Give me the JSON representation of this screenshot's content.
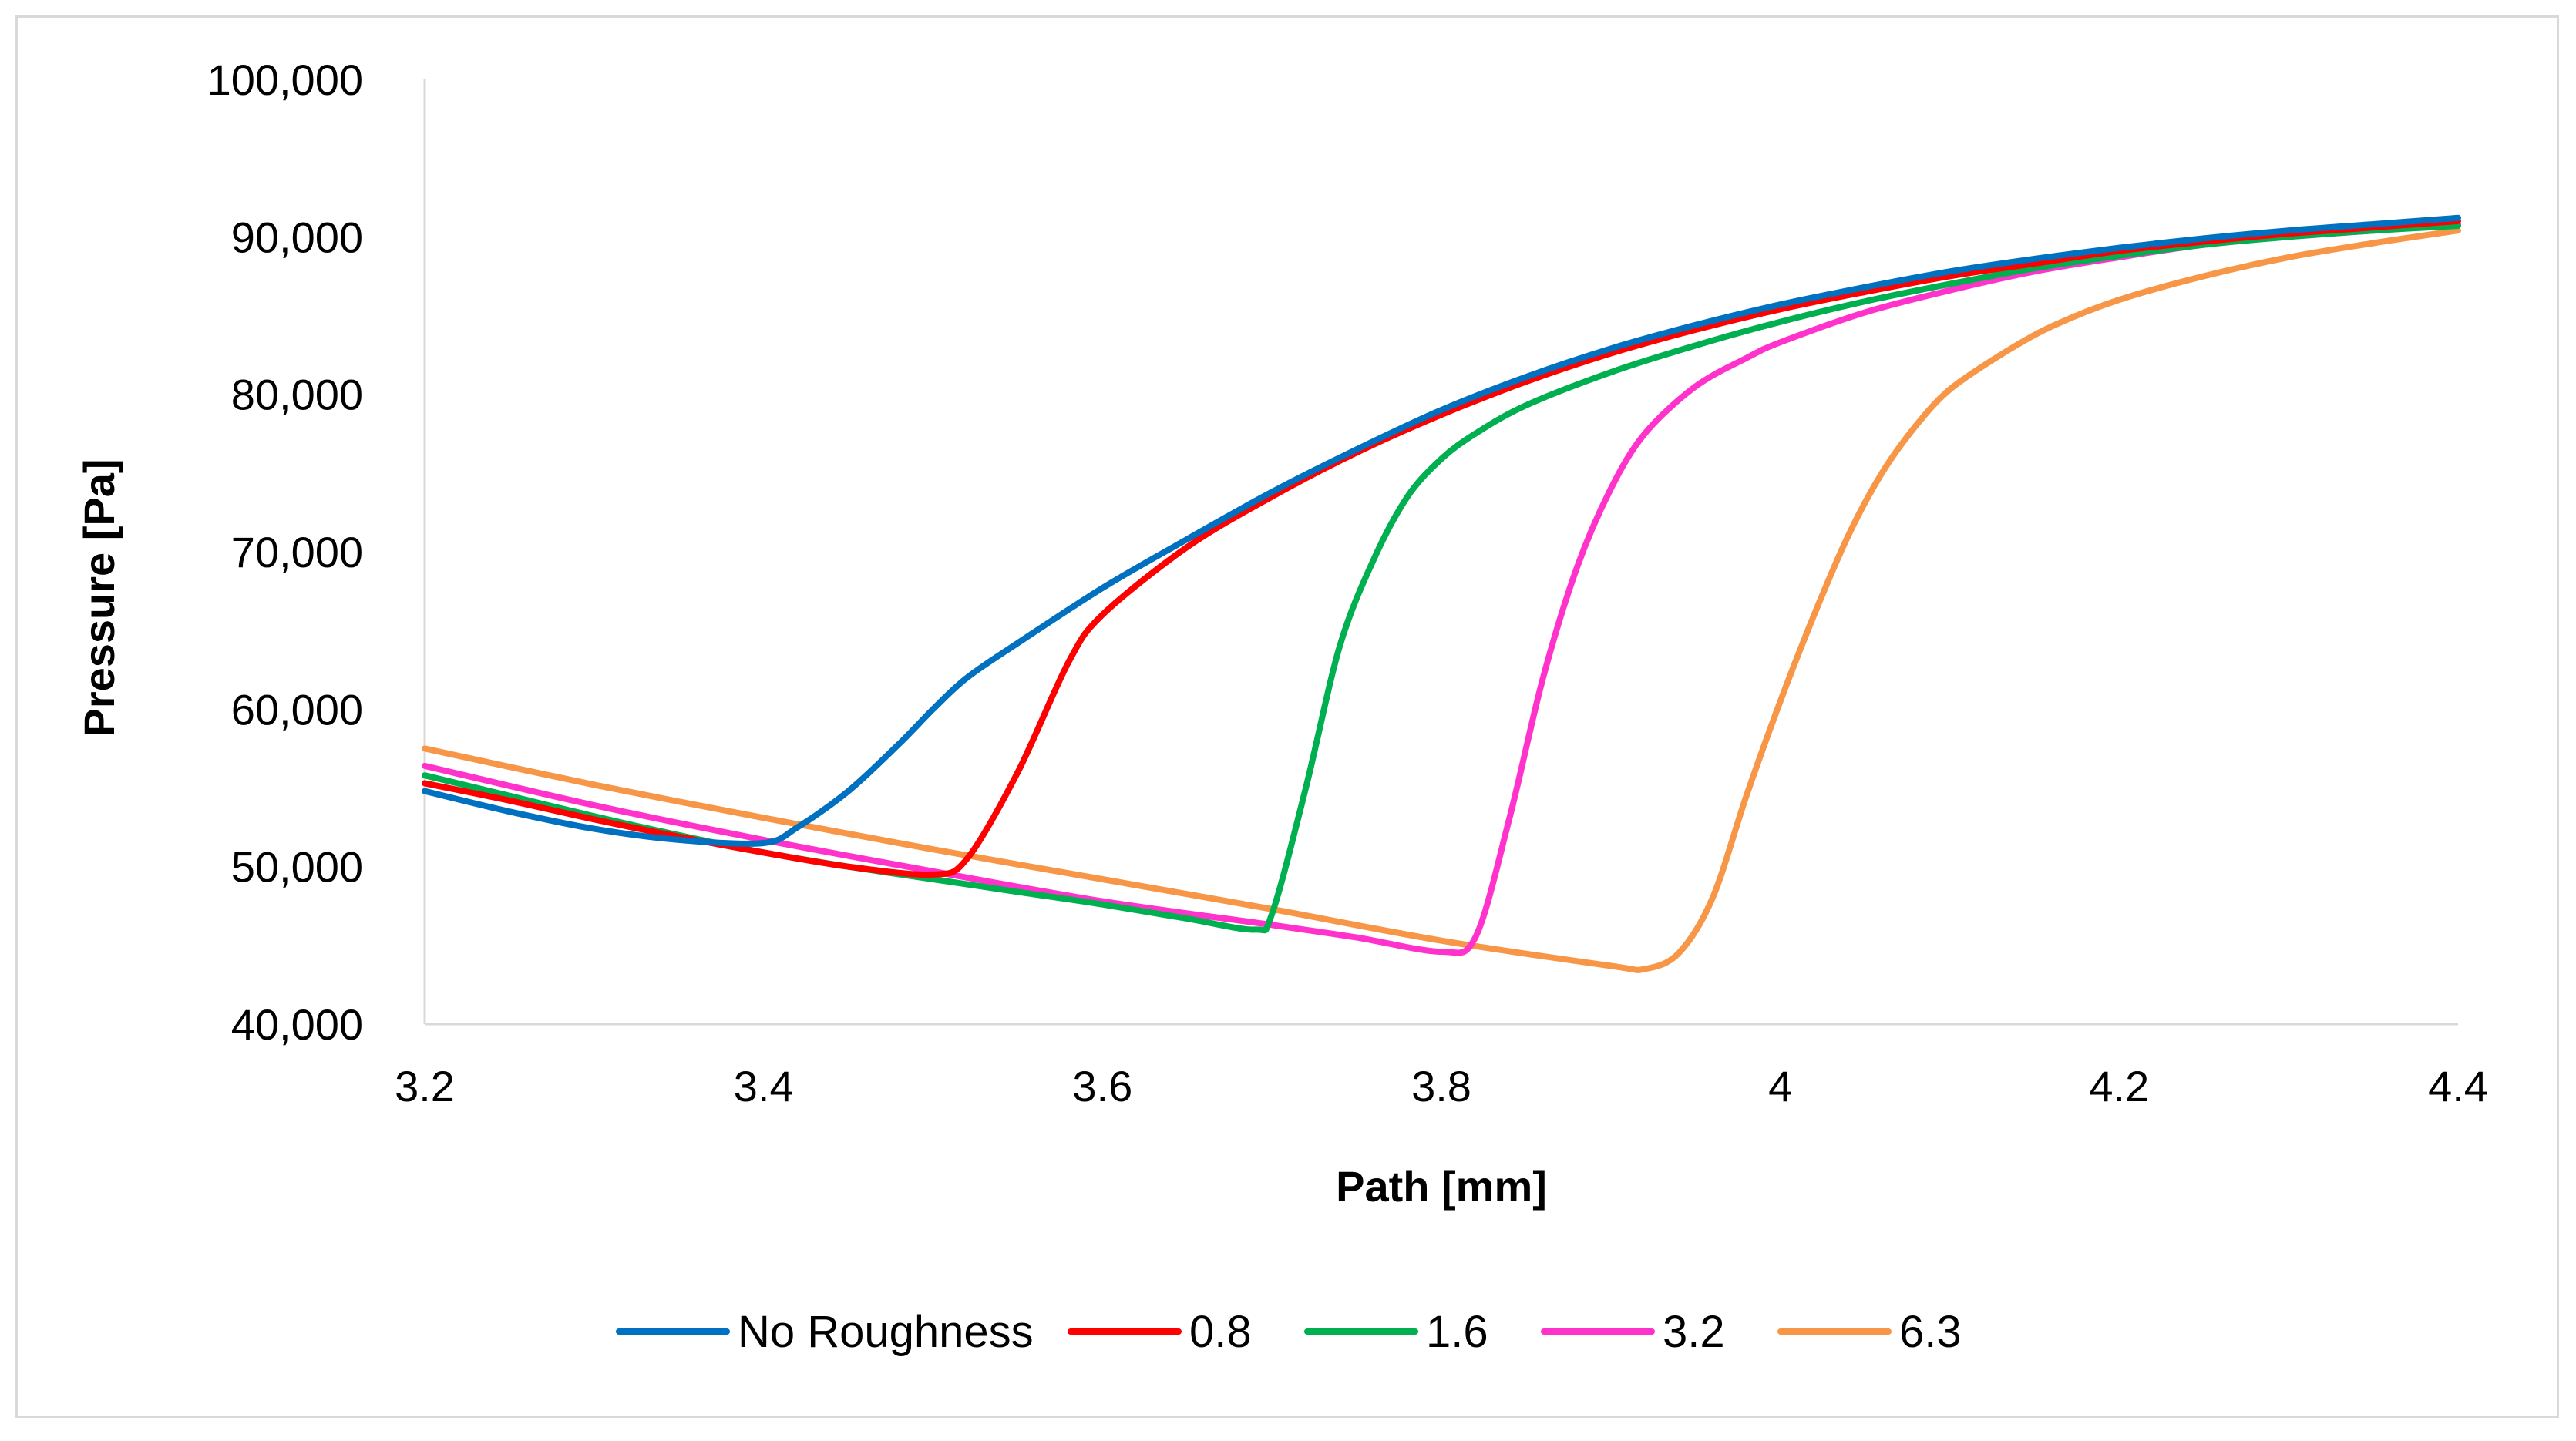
{
  "chart_data": {
    "type": "line",
    "title": "",
    "xlabel": "Path [mm]",
    "ylabel": "Pressure [Pa]",
    "xlim": [
      3.2,
      4.4
    ],
    "ylim": [
      40000,
      100000
    ],
    "xticks": [
      3.2,
      3.4,
      3.6,
      3.8,
      4.0,
      4.2,
      4.4
    ],
    "xtick_labels": [
      "3.2",
      "3.4",
      "3.6",
      "3.8",
      "4",
      "4.2",
      "4.4"
    ],
    "yticks": [
      40000,
      50000,
      60000,
      70000,
      80000,
      90000,
      100000
    ],
    "ytick_labels": [
      "40,000",
      "50,000",
      "60,000",
      "70,000",
      "80,000",
      "90,000",
      "100,000"
    ],
    "grid": false,
    "legend_position": "bottom",
    "series": [
      {
        "name": "No Roughness",
        "color": "#0070C0",
        "x": [
          3.2,
          3.25,
          3.3,
          3.35,
          3.4,
          3.42,
          3.45,
          3.48,
          3.5,
          3.52,
          3.55,
          3.6,
          3.65,
          3.7,
          3.75,
          3.8,
          3.85,
          3.9,
          3.95,
          4.0,
          4.05,
          4.1,
          4.15,
          4.2,
          4.25,
          4.3,
          4.35,
          4.4
        ],
        "y": [
          54800,
          53500,
          52400,
          51700,
          51500,
          52500,
          54800,
          57800,
          60000,
          62000,
          64200,
          67700,
          70800,
          73800,
          76500,
          79000,
          81100,
          82900,
          84400,
          85700,
          86800,
          87800,
          88600,
          89300,
          89900,
          90400,
          90800,
          91200
        ]
      },
      {
        "name": "0.8",
        "color": "#FF0000",
        "x": [
          3.2,
          3.25,
          3.3,
          3.35,
          3.4,
          3.45,
          3.5,
          3.52,
          3.55,
          3.58,
          3.6,
          3.65,
          3.7,
          3.75,
          3.8,
          3.85,
          3.9,
          3.95,
          4.0,
          4.05,
          4.1,
          4.15,
          4.2,
          4.25,
          4.3,
          4.35,
          4.4
        ],
        "y": [
          55300,
          54200,
          53000,
          51900,
          50900,
          50000,
          49500,
          50500,
          56000,
          63000,
          66000,
          70300,
          73500,
          76300,
          78700,
          80800,
          82600,
          84100,
          85400,
          86500,
          87500,
          88300,
          89100,
          89700,
          90200,
          90600,
          91000
        ]
      },
      {
        "name": "1.6",
        "color": "#00B050",
        "x": [
          3.2,
          3.25,
          3.3,
          3.35,
          3.4,
          3.45,
          3.5,
          3.55,
          3.6,
          3.65,
          3.69,
          3.7,
          3.72,
          3.74,
          3.76,
          3.78,
          3.8,
          3.82,
          3.85,
          3.9,
          3.95,
          4.0,
          4.05,
          4.1,
          4.15,
          4.2,
          4.25,
          4.3,
          4.35,
          4.4
        ],
        "y": [
          55800,
          54500,
          53200,
          52000,
          50900,
          50000,
          49200,
          48400,
          47600,
          46700,
          46000,
          47000,
          55000,
          64000,
          69500,
          73500,
          75900,
          77500,
          79300,
          81400,
          83100,
          84600,
          85900,
          87000,
          88000,
          88800,
          89500,
          90000,
          90400,
          90700
        ]
      },
      {
        "name": "3.2",
        "color": "#FF33CC",
        "x": [
          3.2,
          3.3,
          3.4,
          3.5,
          3.6,
          3.7,
          3.75,
          3.8,
          3.82,
          3.84,
          3.86,
          3.88,
          3.9,
          3.92,
          3.95,
          3.98,
          4.0,
          4.05,
          4.1,
          4.15,
          4.2,
          4.25,
          4.3,
          4.35,
          4.4
        ],
        "y": [
          56400,
          53900,
          51700,
          49700,
          47800,
          46300,
          45500,
          44600,
          45500,
          53000,
          62000,
          69000,
          74000,
          77500,
          80500,
          82300,
          83300,
          85200,
          86600,
          87800,
          88700,
          89500,
          90000,
          90400,
          90800
        ]
      },
      {
        "name": "6.3",
        "color": "#F79646",
        "x": [
          3.2,
          3.3,
          3.4,
          3.5,
          3.6,
          3.7,
          3.8,
          3.9,
          3.92,
          3.94,
          3.96,
          3.98,
          4.0,
          4.02,
          4.04,
          4.06,
          4.08,
          4.1,
          4.13,
          4.16,
          4.2,
          4.25,
          4.3,
          4.35,
          4.4
        ],
        "y": [
          57500,
          55200,
          53100,
          51100,
          49200,
          47300,
          45300,
          43700,
          43500,
          44500,
          48000,
          54500,
          60500,
          66000,
          71000,
          75000,
          78000,
          80300,
          82500,
          84300,
          86000,
          87500,
          88700,
          89600,
          90400
        ]
      }
    ]
  }
}
